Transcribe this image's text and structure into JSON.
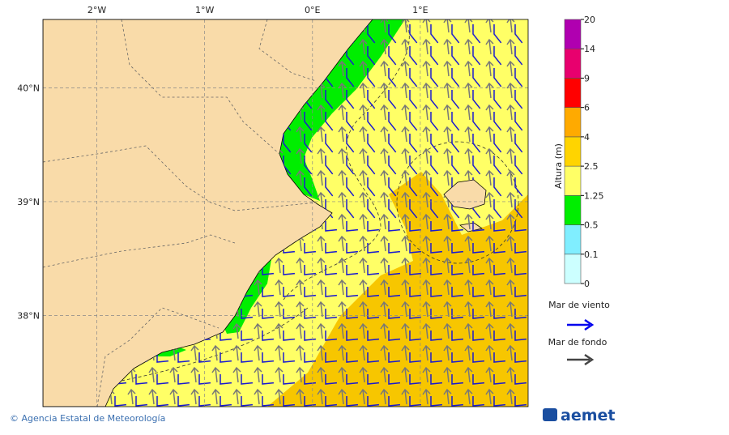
{
  "map": {
    "xlim": [
      -2.5,
      2.0
    ],
    "ylim": [
      37.2,
      40.6
    ],
    "xticks": [
      {
        "value": -2,
        "label": "2°W"
      },
      {
        "value": -1,
        "label": "1°W"
      },
      {
        "value": 0,
        "label": "0°E"
      },
      {
        "value": 1,
        "label": "1°E"
      }
    ],
    "yticks": [
      {
        "value": 40,
        "label": "40°N"
      },
      {
        "value": 39,
        "label": "39°N"
      },
      {
        "value": 38,
        "label": "38°N"
      }
    ]
  },
  "colorbar": {
    "title": "Altura (m)",
    "ticks": [
      0,
      0.1,
      0.5,
      1.25,
      2.5,
      4,
      6,
      9,
      14,
      20
    ],
    "colors": [
      "#ccffff",
      "#80eeff",
      "#00ee00",
      "#ffff66",
      "#ffd400",
      "#ffaa00",
      "#ff0000",
      "#e8006e",
      "#b000b0"
    ]
  },
  "legend": {
    "wind": "Mar de viento",
    "swell": "Mar de fondo"
  },
  "footer": {
    "credit": "© Agencia Estatal de Meteorología",
    "logo": "aemet"
  }
}
